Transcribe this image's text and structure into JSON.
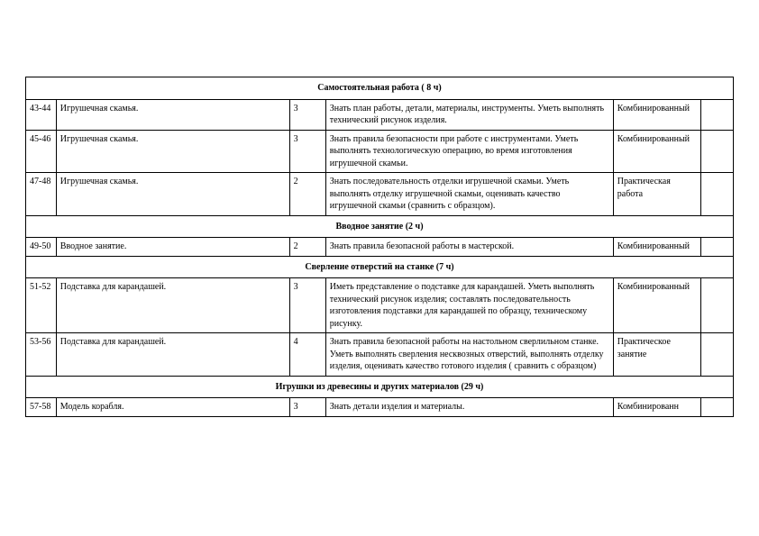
{
  "sections": [
    {
      "title": "Самостоятельная работа ( 8 ч)"
    }
  ],
  "rows": [
    {
      "num": "43-44",
      "topic": "Игрушечная скамья.",
      "hours": "3",
      "req": "Знать план работы,  детали, материалы, инструменты. Уметь выполнять технический рисунок изделия.",
      "type": "Комбинированный"
    },
    {
      "num": "45-46",
      "topic": "Игрушечная скамья.",
      "hours": "3",
      "req": "Знать правила безопасности при работе с инструментами. Уметь выполнять технологическую операцию, во время изготовления игрушечной скамьи.",
      "type": "Комбинированный"
    },
    {
      "num": "47-48",
      "topic": "Игрушечная скамья.",
      "hours": "2",
      "req": "Знать последовательность отделки игрушечной скамьи. Уметь выполнять отделку игрушечной скамьи, оценивать качество игрушечной скамьи (сравнить с образцом).",
      "type": "Практическая работа"
    }
  ],
  "section2": {
    "title": "Вводное занятие (2 ч)"
  },
  "rows2": [
    {
      "num": "49-50",
      "topic": "Вводное занятие.",
      "hours": "2",
      "req": "Знать правила безопасной работы в мастерской.",
      "type": "Комбинированный"
    }
  ],
  "section3": {
    "title": "Сверление отверстий на станке (7 ч)"
  },
  "rows3": [
    {
      "num": "51-52",
      "topic": "Подставка для карандашей.",
      "hours": "3",
      "req": "Иметь представление о подставке для карандашей. Уметь выполнять технический рисунок изделия; составлять последовательность изготовления подставки для карандашей по образцу, техническому рисунку.",
      "type": "Комбинированный"
    },
    {
      "num": "53-56",
      "topic": "Подставка для карандашей.",
      "hours": "4",
      "req": "Знать правила безопасной работы на настольном сверлильном станке. Уметь выполнять сверления несквозных отверстий, выполнять отделку изделия, оценивать качество готового изделия ( сравнить с образцом)",
      "type": "Практическое занятие"
    }
  ],
  "section4": {
    "title": "Игрушки из древесины и других материалов (29 ч)"
  },
  "rows4": [
    {
      "num": "57-58",
      "topic": "Модель корабля.",
      "hours": "3",
      "req": "Знать  детали изделия и материалы.",
      "type": "Комбинированн"
    }
  ]
}
